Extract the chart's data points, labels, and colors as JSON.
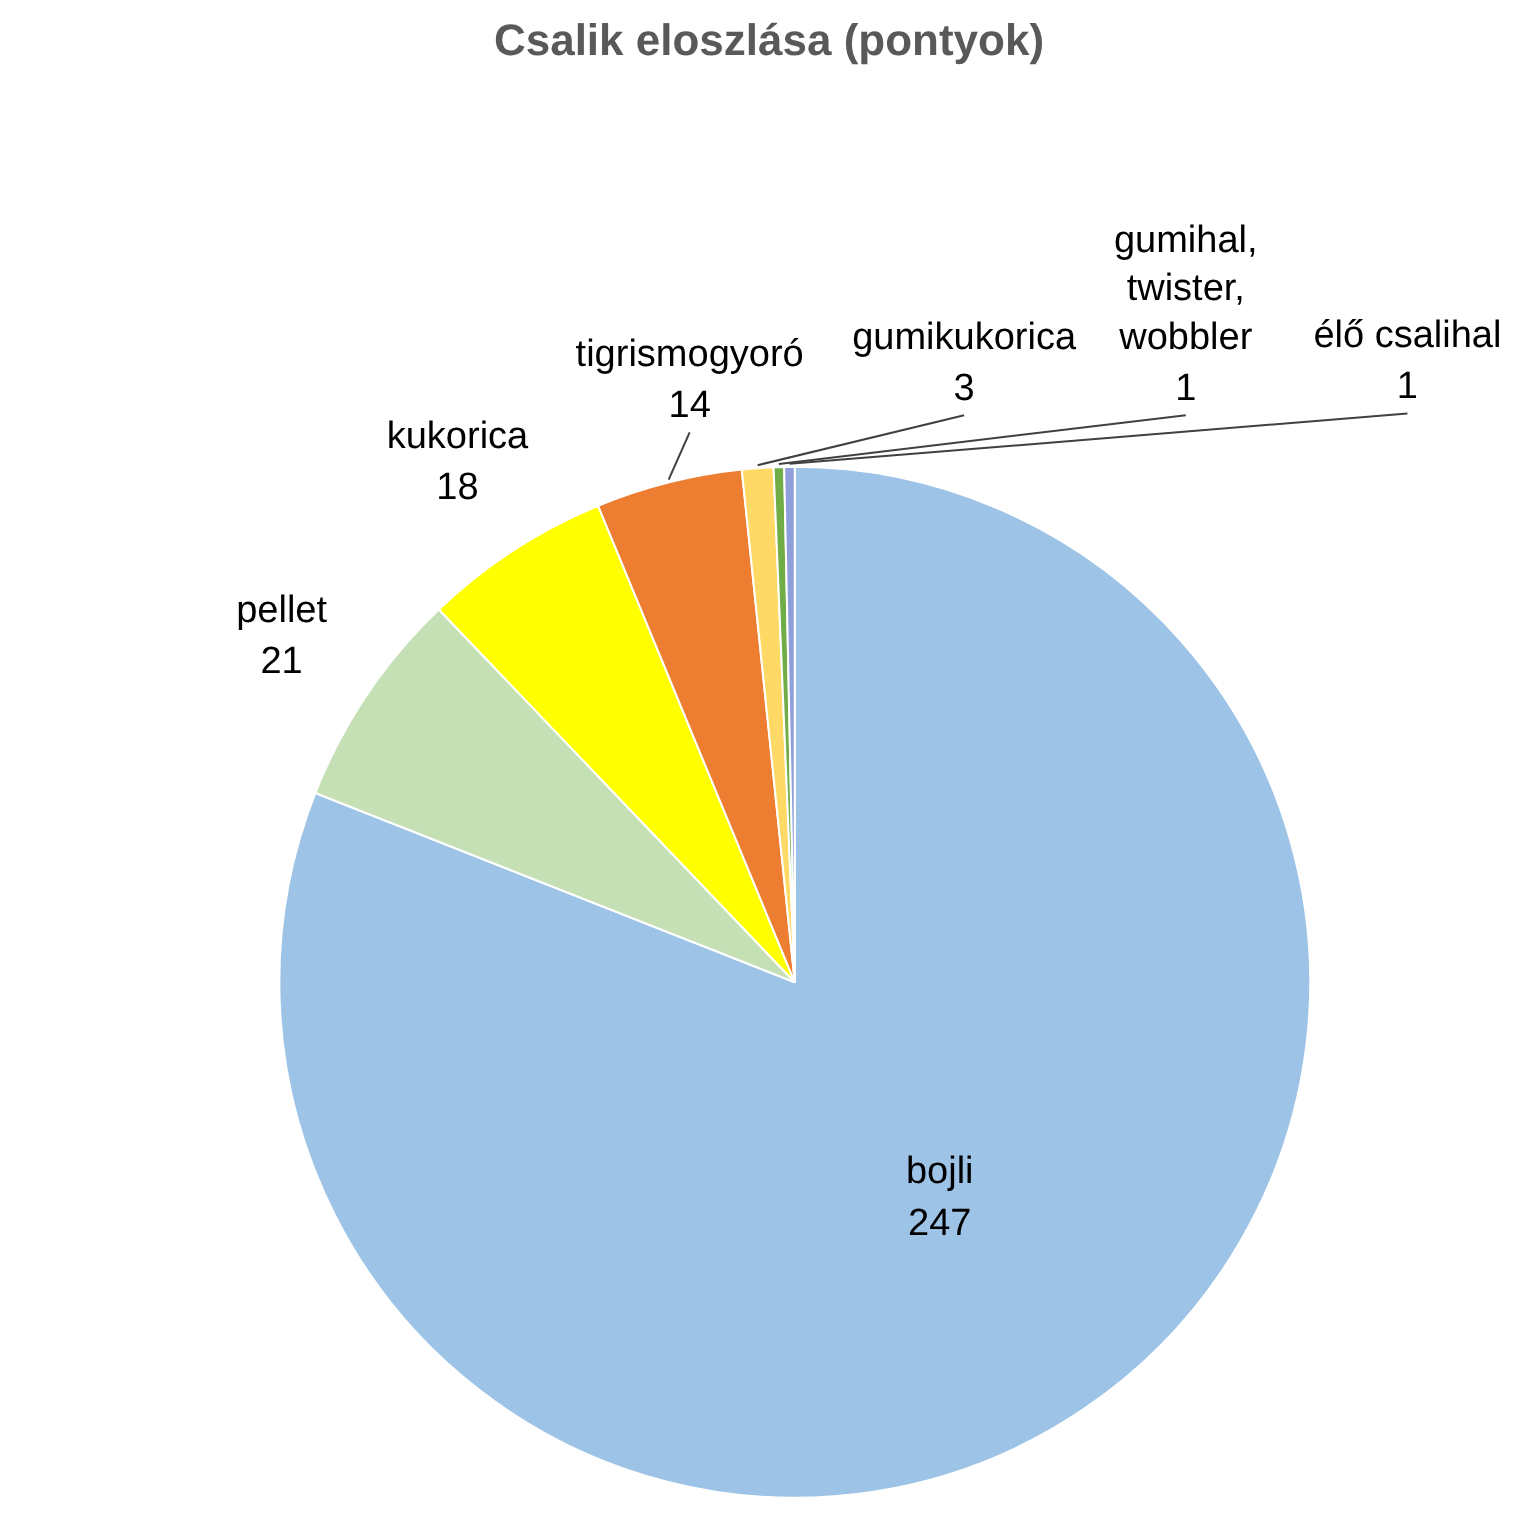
{
  "chart_data": {
    "type": "pie",
    "title": "Csalik eloszlása (pontyok)",
    "categories": [
      "bojli",
      "pellet",
      "kukorica",
      "tigrismogyoró",
      "gumikukorica",
      "gumihal, twister, wobbler",
      "élő csalihal"
    ],
    "values": [
      247,
      21,
      18,
      14,
      3,
      1,
      1
    ],
    "colors": [
      "#9dc3e6",
      "#c5e0b4",
      "#ffff00",
      "#ed7d31",
      "#ffd966",
      "#70ad47",
      "#8f9fdc"
    ],
    "data_labels": true
  }
}
